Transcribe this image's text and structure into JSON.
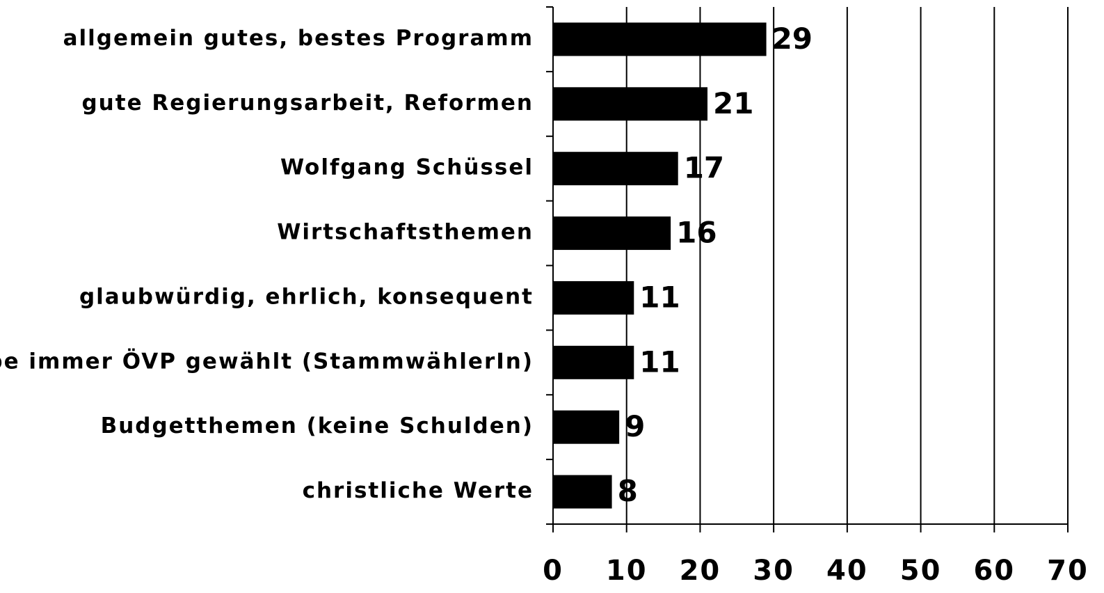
{
  "chart_data": {
    "type": "bar",
    "orientation": "horizontal",
    "categories": [
      "allgemein gutes, bestes Programm",
      "gute Regierungsarbeit, Reformen",
      "Wolfgang Schüssel",
      "Wirtschaftsthemen",
      "glaubwürdig, ehrlich, konsequent",
      "habe immer ÖVP gewählt (StammwählerIn)",
      "Budgetthemen (keine Schulden)",
      "christliche Werte"
    ],
    "values": [
      29,
      21,
      17,
      16,
      11,
      11,
      9,
      8
    ],
    "color": "#000000",
    "xlim": [
      0,
      70
    ],
    "xticks": [
      0,
      10,
      20,
      30,
      40,
      50,
      60,
      70
    ],
    "grid": true
  }
}
